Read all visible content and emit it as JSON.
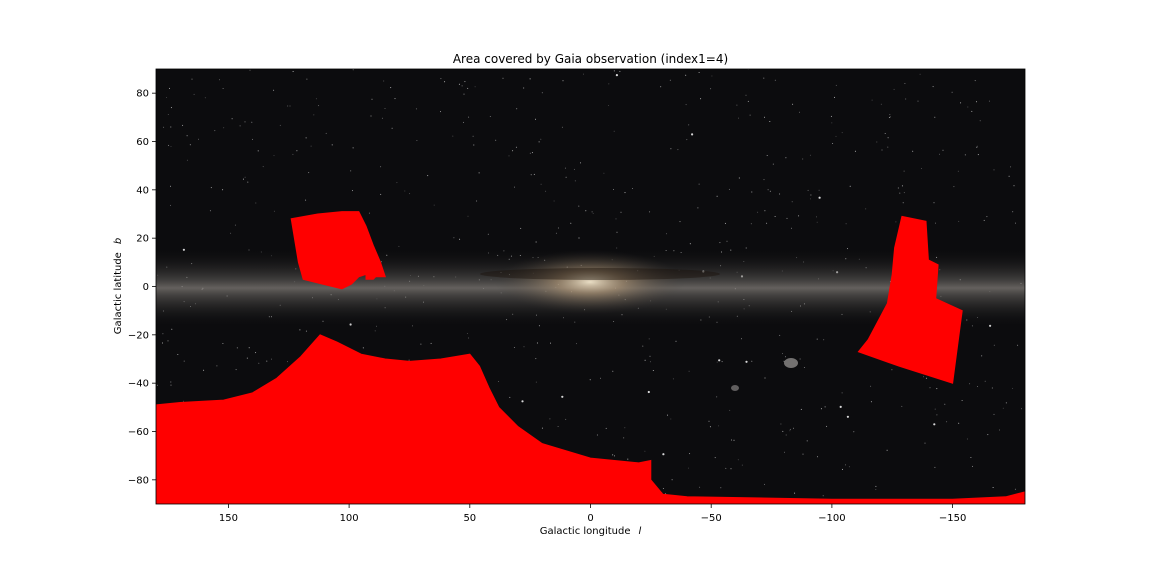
{
  "chart_data": {
    "type": "area",
    "title": "Area covered by Gaia observation (index1=4)",
    "xlabel": "Galactic longitude",
    "xlabel_symbol": "l",
    "ylabel": "Galactic latitude",
    "ylabel_symbol": "b",
    "xlim": [
      180,
      -180
    ],
    "ylim": [
      -90,
      90
    ],
    "xticks": [
      150,
      100,
      50,
      0,
      -50,
      -100,
      -150
    ],
    "xtick_labels": [
      "150",
      "100",
      "50",
      "0",
      "−50",
      "−100",
      "−150"
    ],
    "yticks": [
      80,
      60,
      40,
      20,
      0,
      -20,
      -40,
      -60,
      -80
    ],
    "ytick_labels": [
      "80",
      "60",
      "40",
      "20",
      "0",
      "−20",
      "−40",
      "−60",
      "−80"
    ],
    "grid": false,
    "background": "Milky Way all-sky image",
    "fill_color": "#ff0000",
    "regions": [
      {
        "name": "region-north-left",
        "points": [
          [
            124,
            28
          ],
          [
            113,
            30
          ],
          [
            103,
            31
          ],
          [
            96,
            31
          ],
          [
            93,
            25
          ],
          [
            90,
            17
          ],
          [
            87,
            10
          ],
          [
            85,
            4
          ],
          [
            89,
            4
          ],
          [
            90,
            3
          ],
          [
            93,
            3
          ],
          [
            93,
            5
          ],
          [
            96,
            4
          ],
          [
            99,
            1
          ],
          [
            103,
            -1
          ],
          [
            111,
            1
          ],
          [
            119,
            3
          ],
          [
            121,
            10
          ]
        ]
      },
      {
        "name": "region-right",
        "points": [
          [
            -129,
            29
          ],
          [
            -139,
            27
          ],
          [
            -140,
            11
          ],
          [
            -144,
            9
          ],
          [
            -143,
            -5
          ],
          [
            -154,
            -10
          ],
          [
            -150,
            -40
          ],
          [
            -128,
            -33
          ],
          [
            -111,
            -27
          ],
          [
            -115,
            -22
          ],
          [
            -123,
            -7
          ],
          [
            -125,
            5
          ],
          [
            -126,
            16
          ]
        ]
      },
      {
        "name": "region-south",
        "points": [
          [
            180,
            -49
          ],
          [
            170,
            -48
          ],
          [
            152,
            -47
          ],
          [
            140,
            -44
          ],
          [
            130,
            -38
          ],
          [
            120,
            -29
          ],
          [
            112,
            -20
          ],
          [
            105,
            -23
          ],
          [
            95,
            -28
          ],
          [
            85,
            -30
          ],
          [
            75,
            -31
          ],
          [
            62,
            -30
          ],
          [
            50,
            -28
          ],
          [
            46,
            -33
          ],
          [
            42,
            -42
          ],
          [
            38,
            -50
          ],
          [
            30,
            -58
          ],
          [
            20,
            -65
          ],
          [
            0,
            -71
          ],
          [
            -20,
            -73
          ],
          [
            -25,
            -72
          ],
          [
            -25,
            -80
          ],
          [
            -30,
            -86
          ],
          [
            -40,
            -87
          ],
          [
            -100,
            -88
          ],
          [
            -150,
            -88
          ],
          [
            -172,
            -87
          ],
          [
            -180,
            -85
          ],
          [
            -180,
            -90
          ],
          [
            180,
            -90
          ]
        ]
      }
    ]
  }
}
